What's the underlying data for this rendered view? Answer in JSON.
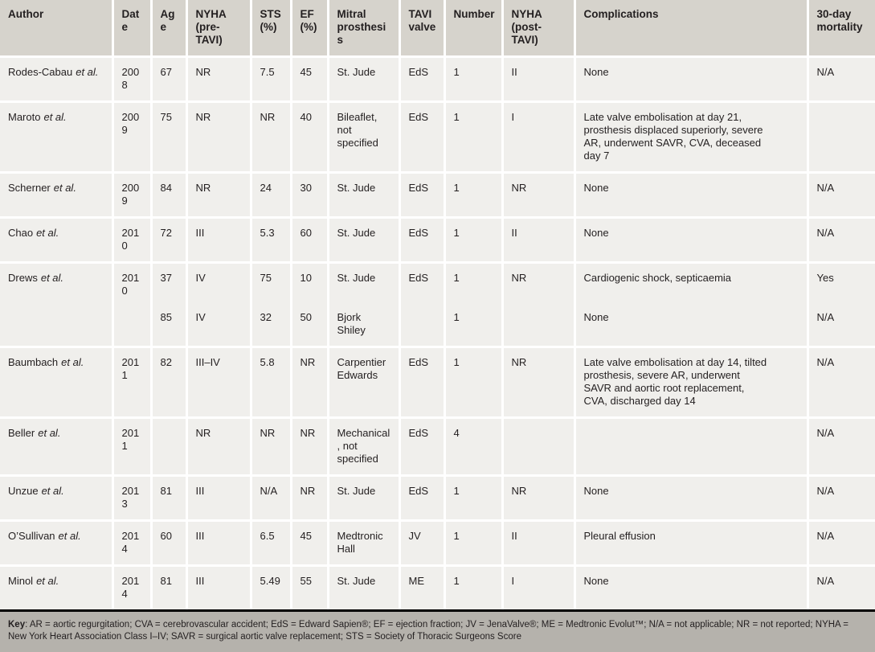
{
  "table": {
    "columns": [
      "Author",
      "Date",
      "Age",
      "NYHA (pre-TAVI)",
      "STS (%)",
      "EF (%)",
      "Mitral prosthesis",
      "TAVI valve",
      "Number",
      "NYHA (post-TAVI)",
      "Complications",
      "30-day mortality"
    ],
    "rows": [
      {
        "author": "Rodes-Cabau",
        "etal": "et al.",
        "continuation": false,
        "values": [
          "2008",
          "67",
          "NR",
          "7.5",
          "45",
          "St. Jude",
          "EdS",
          "1",
          "II",
          "None",
          "N/A"
        ]
      },
      {
        "author": "Maroto",
        "etal": "et al.",
        "continuation": false,
        "values": [
          "2009",
          "75",
          "NR",
          "NR",
          "40",
          "Bileaflet, not specified",
          "EdS",
          "1",
          "I",
          "Late valve embolisation at day 21, prosthesis displaced superiorly, severe AR, underwent SAVR, CVA, deceased day 7",
          ""
        ]
      },
      {
        "author": "Scherner",
        "etal": "et al.",
        "continuation": false,
        "values": [
          "2009",
          "84",
          "NR",
          "24",
          "30",
          "St. Jude",
          "EdS",
          "1",
          "NR",
          "None",
          "N/A"
        ]
      },
      {
        "author": "Chao",
        "etal": "et al.",
        "continuation": false,
        "values": [
          "2010",
          "72",
          "III",
          "5.3",
          "60",
          "St. Jude",
          "EdS",
          "1",
          "II",
          "None",
          "N/A"
        ]
      },
      {
        "author": "Drews",
        "etal": "et al.",
        "continuation": false,
        "values": [
          "2010",
          "37",
          "IV",
          "75",
          "10",
          "St. Jude",
          "EdS",
          "1",
          "NR",
          "Cardiogenic shock, septicaemia",
          "Yes"
        ]
      },
      {
        "author": "",
        "etal": "",
        "continuation": true,
        "values": [
          "",
          "85",
          "IV",
          "32",
          "50",
          "Bjork Shiley",
          "",
          "1",
          "",
          "None",
          "N/A"
        ]
      },
      {
        "author": "Baumbach",
        "etal": "et al.",
        "continuation": false,
        "values": [
          "2011",
          "82",
          "III–IV",
          "5.8",
          "NR",
          "Carpentier Edwards",
          "EdS",
          "1",
          "NR",
          "Late valve embolisation at day 14, tilted prosthesis, severe AR, underwent SAVR and aortic root replacement, CVA, discharged day 14",
          "N/A"
        ]
      },
      {
        "author": "Beller",
        "etal": "et al.",
        "continuation": false,
        "values": [
          "2011",
          "",
          "NR",
          "NR",
          "NR",
          "Mechanical, not specified",
          "EdS",
          "4",
          "",
          "",
          "N/A"
        ]
      },
      {
        "author": "Unzue",
        "etal": "et al.",
        "continuation": false,
        "values": [
          "2013",
          "81",
          "III",
          "N/A",
          "NR",
          "St. Jude",
          "EdS",
          "1",
          "NR",
          "None",
          "N/A"
        ]
      },
      {
        "author": "O’Sullivan",
        "etal": "et al.",
        "continuation": false,
        "values": [
          "2014",
          "60",
          "III",
          "6.5",
          "45",
          "Medtronic Hall",
          "JV",
          "1",
          "II",
          "Pleural effusion",
          "N/A"
        ]
      },
      {
        "author": "Minol",
        "etal": "et al.",
        "continuation": false,
        "values": [
          "2014",
          "81",
          "III",
          "5.49",
          "55",
          "St. Jude",
          "ME",
          "1",
          "I",
          "None",
          "N/A"
        ]
      }
    ]
  },
  "key": {
    "label": "Key",
    "text": ": AR = aortic regurgitation; CVA = cerebrovascular accident; EdS = Edward Sapien®; EF = ejection fraction; JV = JenaValve®; ME = Medtronic Evolut™; N/A = not applicable; NR = not reported; NYHA = New York Heart Association Class I–IV; SAVR = surgical aortic valve replacement; STS = Society of Thoracic Surgeons Score"
  },
  "colors": {
    "header_bg": "#d6d3cc",
    "row_bg": "#f0efec",
    "key_bg": "#b5b2ac",
    "grid": "#ffffff",
    "text": "#231f20",
    "rule": "#000000"
  }
}
